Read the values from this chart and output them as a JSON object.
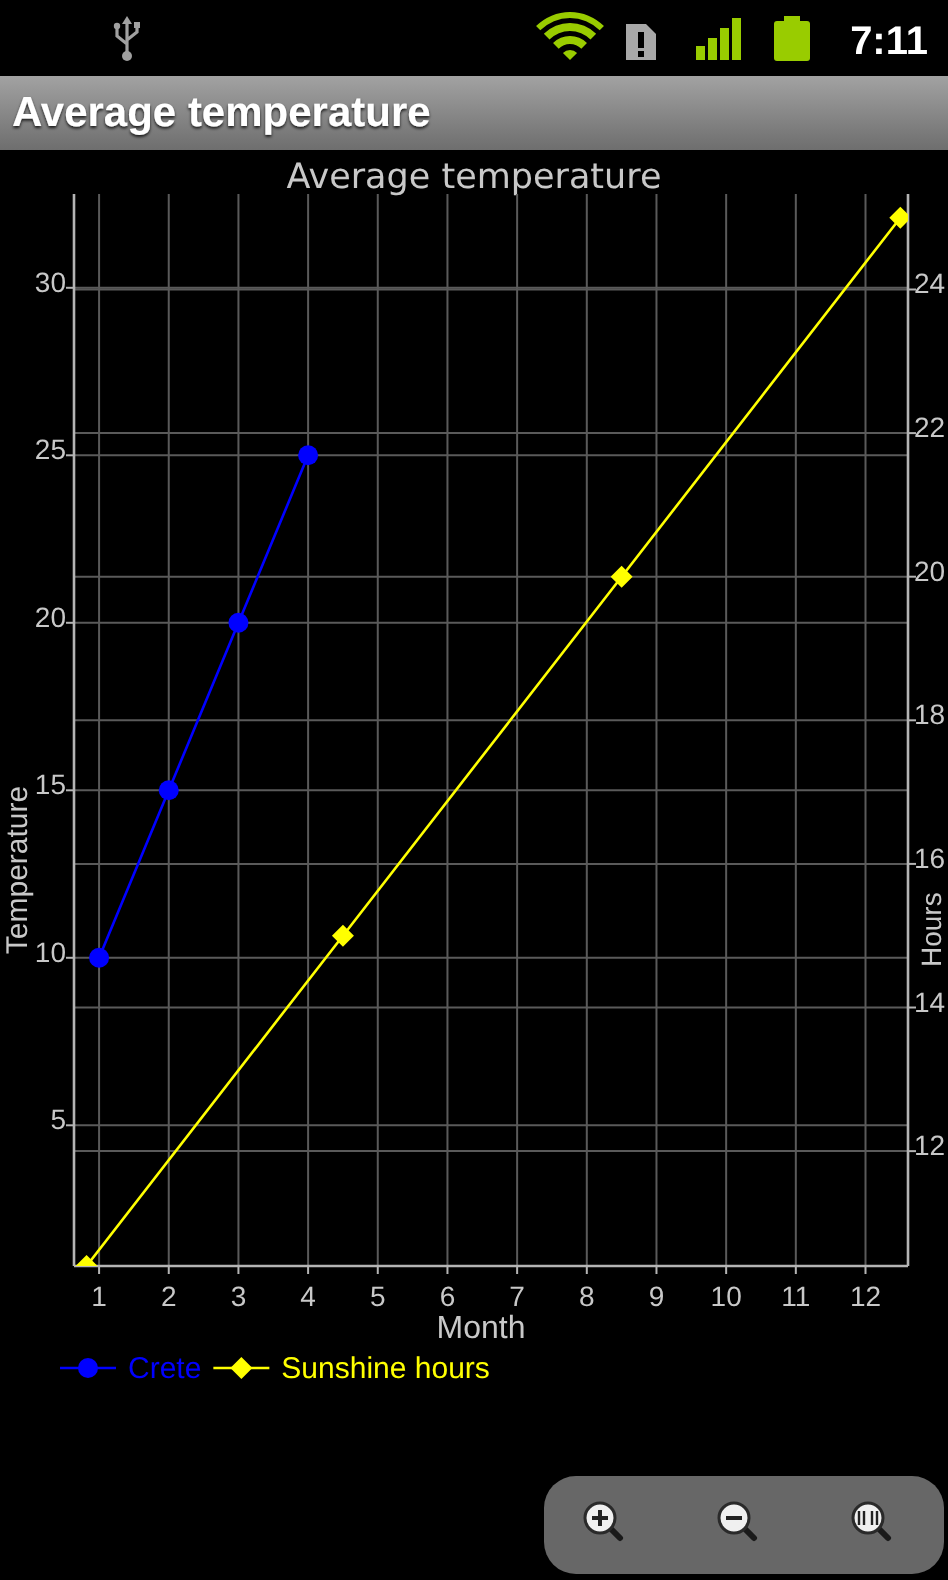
{
  "chart_data": {
    "type": "line",
    "title": "Average temperature",
    "xlabel": "Month",
    "ylabel": "Temperature",
    "y2label": "Hours",
    "annotations": [
      "7:11"
    ],
    "xlim": [
      0.64,
      12.61
    ],
    "xticks": [
      1,
      2,
      3,
      4,
      5,
      6,
      7,
      8,
      9,
      10,
      11,
      12
    ],
    "ylim": [
      0.8,
      32.8
    ],
    "yticks": [
      5,
      10,
      15,
      20,
      25,
      30
    ],
    "y2lim": [
      10.4,
      25.33
    ],
    "y2ticks": [
      12,
      14,
      16,
      18,
      20,
      22,
      24
    ],
    "grid": true,
    "legend": "bottom",
    "line_style": "solid",
    "series": [
      {
        "name": "Crete",
        "color": "#0000ff",
        "marker": "circle",
        "x": [
          1,
          2,
          3,
          4
        ],
        "values": [
          10,
          15,
          20,
          25
        ]
      },
      {
        "name": "Sunshine hours",
        "color": "#ffff00",
        "marker": "diamond",
        "axis": "y2",
        "x": [
          0.82,
          4.5,
          8.5,
          12.5
        ],
        "values": [
          10.4,
          15,
          20,
          25
        ]
      }
    ]
  }
}
